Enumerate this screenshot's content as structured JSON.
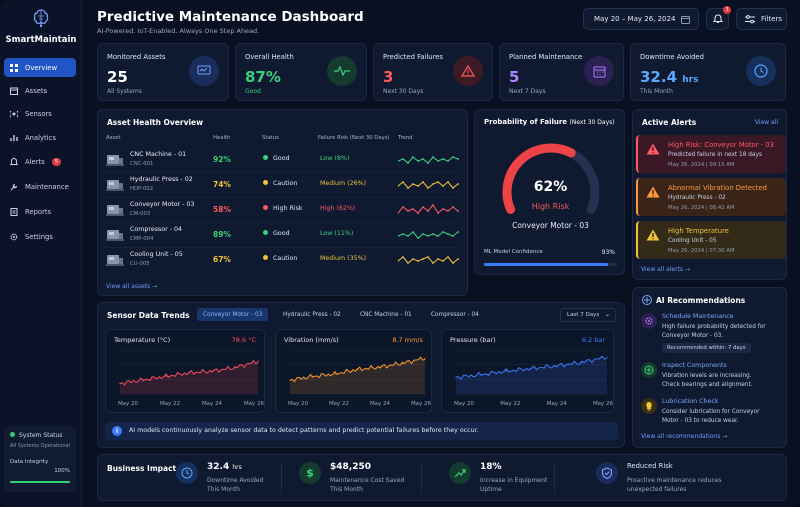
{
  "brand": {
    "name": "SmartMaintain"
  },
  "sidebar": {
    "items": [
      {
        "label": "Overview",
        "icon": "grid-icon"
      },
      {
        "label": "Assets",
        "icon": "box-icon"
      },
      {
        "label": "Sensors",
        "icon": "sensor-icon"
      },
      {
        "label": "Analytics",
        "icon": "chart-icon"
      },
      {
        "label": "Alerts",
        "icon": "bell-icon",
        "badge": "5"
      },
      {
        "label": "Maintenance",
        "icon": "wrench-icon"
      },
      {
        "label": "Reports",
        "icon": "document-icon"
      },
      {
        "label": "Settings",
        "icon": "gear-icon"
      }
    ],
    "status": {
      "title": "System Status",
      "detail": "All Systems Operational",
      "integrity_label": "Data Integrity",
      "integrity_value": "100%",
      "integrity_fraction": 1.0
    }
  },
  "header": {
    "title": "Predictive Maintenance Dashboard",
    "subtitle": "AI-Powered. IoT-Enabled. Always One Step Ahead.",
    "date_range": "May 20 – May 26, 2024",
    "notifications": "3",
    "filters": "Filters"
  },
  "kpis": [
    {
      "label": "Monitored Assets",
      "value": "25",
      "sub": "All Systems",
      "color": "#4a7cf0",
      "icon": "monitor-icon"
    },
    {
      "label": "Overall Health",
      "value": "87%",
      "sub": "Good",
      "color": "#3ad17a",
      "icon": "pulse-icon"
    },
    {
      "label": "Predicted Failures",
      "value": "3",
      "sub": "Next 30 Days",
      "color": "#ff5a5f",
      "icon": "warning-icon"
    },
    {
      "label": "Planned Maintenance",
      "value": "5",
      "sub": "Next 7 Days",
      "color": "#a982ff",
      "icon": "calendar-icon"
    },
    {
      "label": "Downtime Avoided",
      "value": "32.4",
      "unit": "hrs",
      "sub": "This Month",
      "color": "#5aa8ff",
      "icon": "clock-icon"
    }
  ],
  "asset_health": {
    "title": "Asset Health Overview",
    "columns": [
      "Asset",
      "Health",
      "Status",
      "Failure Risk (Next 30 Days)",
      "Trend"
    ],
    "rows": [
      {
        "name": "CNC Machine - 01",
        "id": "CNC-001",
        "health": "92%",
        "status": "Good",
        "risk": "Low (8%)",
        "level": "good"
      },
      {
        "name": "Hydraulic Press - 02",
        "id": "HDP-002",
        "health": "74%",
        "status": "Caution",
        "risk": "Medium (26%)",
        "level": "caution"
      },
      {
        "name": "Conveyor Motor - 03",
        "id": "CM-003",
        "health": "58%",
        "status": "High Risk",
        "risk": "High (62%)",
        "level": "high"
      },
      {
        "name": "Compressor - 04",
        "id": "CMP-004",
        "health": "89%",
        "status": "Good",
        "risk": "Low (11%)",
        "level": "good"
      },
      {
        "name": "Cooling Unit - 05",
        "id": "CU-005",
        "health": "67%",
        "status": "Caution",
        "risk": "Medium (35%)",
        "level": "caution"
      }
    ],
    "view_all": "View all assets →"
  },
  "probability": {
    "title": "Probability of Failure",
    "title_suffix": "(Next 30 Days)",
    "value": "62%",
    "fraction": 0.62,
    "risk": "High Risk",
    "asset": "Conveyor Motor - 03",
    "confidence_label": "ML Model Confidence",
    "confidence_value": "93%",
    "confidence_fraction": 0.93
  },
  "alerts": {
    "title": "Active Alerts",
    "view_all": "View all",
    "footer": "View all alerts →",
    "items": [
      {
        "title": "High Risk: Conveyor Motor - 03",
        "detail": "Predicted failure in next 18 days",
        "time": "May 26, 2024 | 09:15 AM",
        "color": "#ff5a5f",
        "icon": "warning-icon"
      },
      {
        "title": "Abnormal Vibration Detected",
        "detail": "Hydraulic Press - 02",
        "time": "May 26, 2024 | 08:42 AM",
        "color": "#ff9a3c",
        "icon": "warning-icon"
      },
      {
        "title": "High Temperature",
        "detail": "Cooling Unit - 05",
        "time": "May 26, 2024 | 07:30 AM",
        "color": "#f3c13c",
        "icon": "warning-icon"
      }
    ]
  },
  "sensor_trends": {
    "title": "Sensor Data Trends",
    "tabs": [
      "Conveyor Motor - 03",
      "Hydraulic Press - 02",
      "CNC Machine - 01",
      "Compressor - 04"
    ],
    "range": "Last 7 Days",
    "note": "AI models continuously analyze sensor data to detect patterns and predict potential failures before they occur."
  },
  "chart_data": [
    {
      "type": "line",
      "title": "Temperature (°C)",
      "current": "78.6 °C",
      "color": "#ff4d5e",
      "x": [
        "May 20",
        "May 21",
        "May 22",
        "May 23",
        "May 24",
        "May 25",
        "May 26"
      ],
      "ylim": [
        60,
        85
      ],
      "values": [
        66,
        68,
        70,
        72,
        73,
        75,
        78.6
      ]
    },
    {
      "type": "line",
      "title": "Vibration (mm/s)",
      "current": "8.7 mm/s",
      "color": "#ff9a2c",
      "x": [
        "May 20",
        "May 21",
        "May 22",
        "May 23",
        "May 24",
        "May 25",
        "May 26"
      ],
      "ylim": [
        3,
        10
      ],
      "values": [
        5.2,
        5.8,
        6.2,
        6.9,
        7.3,
        7.9,
        8.7
      ]
    },
    {
      "type": "line",
      "title": "Pressure (bar)",
      "current": "6.2 bar",
      "color": "#3d7bff",
      "x": [
        "May 20",
        "May 21",
        "May 22",
        "May 23",
        "May 24",
        "May 25",
        "May 26"
      ],
      "ylim": [
        2,
        7
      ],
      "values": [
        3.9,
        4.2,
        4.6,
        4.9,
        5.2,
        5.6,
        6.2
      ]
    }
  ],
  "recommendations": {
    "title": "AI Recommendations",
    "footer": "View all recommendations →",
    "items": [
      {
        "title": "Schedule Maintenance",
        "text": [
          "High failure probability detected for",
          "Conveyor Motor - 03."
        ],
        "tag": "Recommended within: 7 days",
        "icon": "gear-icon",
        "color": "#a982ff"
      },
      {
        "title": "Inspect Components",
        "text": [
          "Vibration levels are increasing.",
          "Check bearings and alignment."
        ],
        "icon": "plus-icon",
        "color": "#3ad17a"
      },
      {
        "title": "Lubrication Check",
        "text": [
          "Consider lubrication for Conveyor",
          "Motor - 03 to reduce wear."
        ],
        "icon": "lightbulb-icon",
        "color": "#f3c13c"
      }
    ]
  },
  "impact": {
    "title": "Business Impact",
    "items": [
      {
        "value": "32.4",
        "unit": "hrs",
        "label": [
          "Downtime Avoided",
          "This Month"
        ],
        "icon": "clock-icon",
        "color": "#5aa8ff"
      },
      {
        "value": "$48,250",
        "label": [
          "Maintenance Cost Saved",
          "This Month"
        ],
        "icon": "dollar-icon",
        "color": "#3ad17a"
      },
      {
        "value": "18%",
        "label": [
          "Increase in Equipment",
          "Uptime"
        ],
        "icon": "trend-up-icon",
        "color": "#3ad17a"
      },
      {
        "value": "Reduced Risk",
        "label": [
          "Proactive maintenance reduces",
          "unexpected failures"
        ],
        "icon": "shield-icon",
        "color": "#7da6ff"
      }
    ]
  }
}
